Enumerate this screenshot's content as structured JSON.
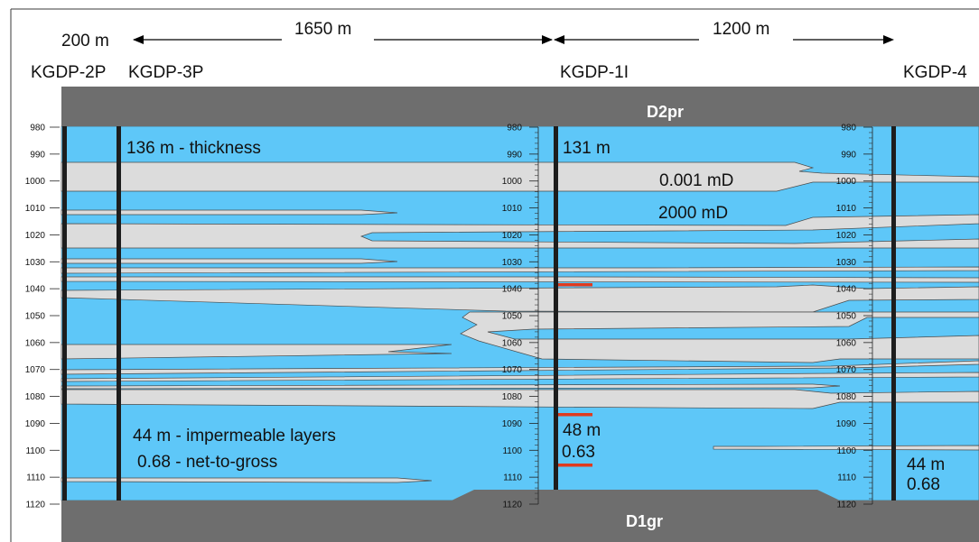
{
  "colors": {
    "permeable": "#5ec7f8",
    "impermeable": "#dcdcdc",
    "formation": "#6e6e6e",
    "frame_line": "#3a3a3a",
    "well": "#1d1d1d",
    "marker": "#e03a1e"
  },
  "distances": {
    "d1": "200 m",
    "d2": "1650 m",
    "d3": "1200 m"
  },
  "wells": [
    {
      "name": "KGDP-2P"
    },
    {
      "name": "KGDP-3P"
    },
    {
      "name": "KGDP-1I"
    },
    {
      "name": "KGDP-4"
    }
  ],
  "formations": {
    "top": "D2pr",
    "bottom": "D1gr"
  },
  "depth_scale": {
    "min": 980,
    "max": 1120,
    "step": 10,
    "labels": [
      "980",
      "990",
      "1000",
      "1010",
      "1020",
      "1030",
      "1040",
      "1050",
      "1060",
      "1070",
      "1080",
      "1090",
      "1100",
      "1110",
      "1120"
    ]
  },
  "annotations": {
    "thickness_left": "136 m - thickness",
    "thickness_mid": "131 m",
    "perm_low": "0.001 mD",
    "perm_high": "2000 mD",
    "imperm_left": "44 m - impermeable layers",
    "ntg_left": "0.68 - net-to-gross",
    "imperm_mid": "48 m",
    "ntg_mid": "0.63",
    "imperm_right": "44 m",
    "ntg_right": "0.68"
  }
}
